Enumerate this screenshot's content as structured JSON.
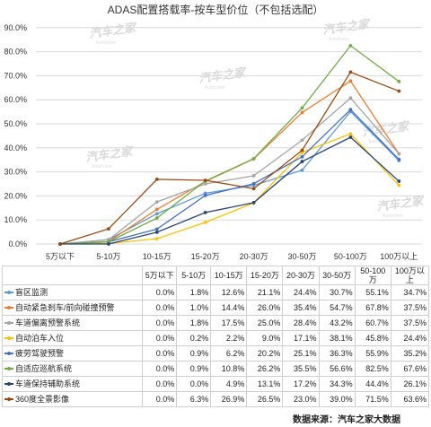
{
  "chart_data": {
    "type": "line",
    "title": "ADAS配置搭载率-按车型价位（不包括选配）",
    "categories": [
      "5万以下",
      "5-10万",
      "10-15万",
      "15-20万",
      "20-30万",
      "30-50万",
      "50-100万",
      "100万以上"
    ],
    "category_header_labels": [
      "5万以下",
      "5-10万",
      "10-15万",
      "15-20万",
      "20-30万",
      "30-50万",
      "50-100万",
      "100万以上"
    ],
    "ylim": [
      0,
      90
    ],
    "y_ticks": [
      "0.0%",
      "10.0%",
      "20.0%",
      "30.0%",
      "40.0%",
      "50.0%",
      "60.0%",
      "70.0%",
      "80.0%",
      "90.0%"
    ],
    "grid": true,
    "series": [
      {
        "name": "盲区监测",
        "color": "#5b9bd5",
        "values": [
          0.0,
          1.8,
          12.6,
          21.1,
          24.4,
          30.7,
          55.1,
          34.7
        ],
        "labels": [
          "0.0%",
          "1.8%",
          "12.6%",
          "21.1%",
          "24.4%",
          "30.7%",
          "55.1%",
          "34.7%"
        ]
      },
      {
        "name": "自动紧急刹车/前向碰撞预警",
        "color": "#ed7d31",
        "values": [
          0.0,
          1.0,
          14.4,
          26.0,
          35.4,
          54.7,
          67.8,
          37.5
        ],
        "labels": [
          "0.0%",
          "1.0%",
          "14.4%",
          "26.0%",
          "35.4%",
          "54.7%",
          "67.8%",
          "37.5%"
        ]
      },
      {
        "name": "车道偏离预警系统",
        "color": "#a5a5a5",
        "values": [
          0.0,
          1.8,
          17.5,
          25.0,
          28.4,
          43.2,
          60.7,
          37.5
        ],
        "labels": [
          "0.0%",
          "1.8%",
          "17.5%",
          "25.0%",
          "28.4%",
          "43.2%",
          "60.7%",
          "37.5%"
        ]
      },
      {
        "name": "自动泊车入位",
        "color": "#ffc000",
        "values": [
          0.0,
          0.2,
          2.2,
          9.0,
          17.1,
          38.1,
          45.8,
          24.4
        ],
        "labels": [
          "0.0%",
          "0.2%",
          "2.2%",
          "9.0%",
          "17.1%",
          "38.1%",
          "45.8%",
          "24.4%"
        ]
      },
      {
        "name": "疲劳驾驶预警",
        "color": "#4472c4",
        "values": [
          0.0,
          0.9,
          6.2,
          20.2,
          25.1,
          36.3,
          55.9,
          35.2
        ],
        "labels": [
          "0.0%",
          "0.9%",
          "6.2%",
          "20.2%",
          "25.1%",
          "36.3%",
          "55.9%",
          "35.2%"
        ]
      },
      {
        "name": "自适应巡航系统",
        "color": "#70ad47",
        "values": [
          0.0,
          0.9,
          10.8,
          26.2,
          35.5,
          56.6,
          82.5,
          67.6
        ],
        "labels": [
          "0.0%",
          "0.9%",
          "10.8%",
          "26.2%",
          "35.5%",
          "56.6%",
          "82.5%",
          "67.6%"
        ]
      },
      {
        "name": "车道保持辅助系统",
        "color": "#264478",
        "values": [
          0.0,
          0.0,
          4.9,
          13.1,
          17.2,
          34.3,
          44.4,
          26.1
        ],
        "labels": [
          "0.0%",
          "0.0%",
          "4.9%",
          "13.1%",
          "17.2%",
          "34.3%",
          "44.4%",
          "26.1%"
        ]
      },
      {
        "name": "360度全景影像",
        "color": "#9e480e",
        "values": [
          0.0,
          6.3,
          26.9,
          26.5,
          23.0,
          39.0,
          71.5,
          63.6
        ],
        "labels": [
          "0.0%",
          "6.3%",
          "26.9%",
          "26.5%",
          "23.0%",
          "39.0%",
          "71.5%",
          "63.6%"
        ]
      }
    ]
  },
  "watermark": {
    "text": "汽车之家",
    "sub": "Autohome"
  },
  "source": "数据来源：汽车之家大数据"
}
